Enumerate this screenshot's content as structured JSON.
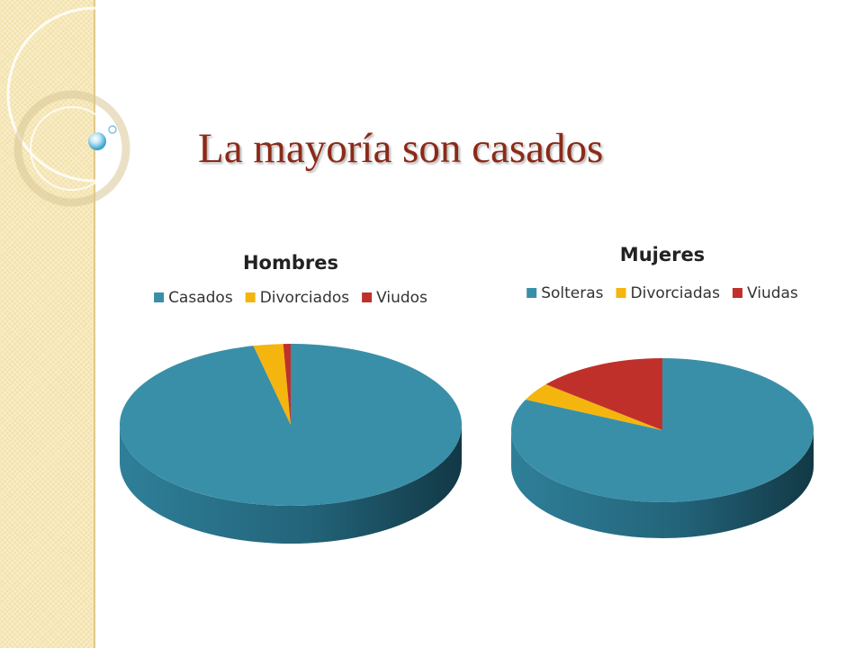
{
  "slide": {
    "title": "La mayoría son casados",
    "title_color": "#8b2a18",
    "band_color": "#f7e8b8"
  },
  "chart_data": [
    {
      "type": "pie",
      "style": "3d",
      "title": "Hombres",
      "legend_position": "top",
      "categories": [
        "Casados",
        "Divorciados",
        "Viudos"
      ],
      "values": [
        96.5,
        2.8,
        0.7
      ],
      "colors": [
        "#3a8fa8",
        "#f5b50f",
        "#c0302b"
      ],
      "legend": [
        "Casados",
        "Divorciados",
        "Viudos"
      ]
    },
    {
      "type": "pie",
      "style": "3d",
      "title": "Mujeres",
      "legend_position": "top",
      "categories": [
        "Solteras",
        "Divorciadas",
        "Viudas"
      ],
      "values": [
        82,
        4,
        14
      ],
      "colors": [
        "#3a8fa8",
        "#f5b50f",
        "#c0302b"
      ],
      "legend": [
        "Solteras",
        "Divorciadas",
        "Viudas"
      ]
    }
  ]
}
